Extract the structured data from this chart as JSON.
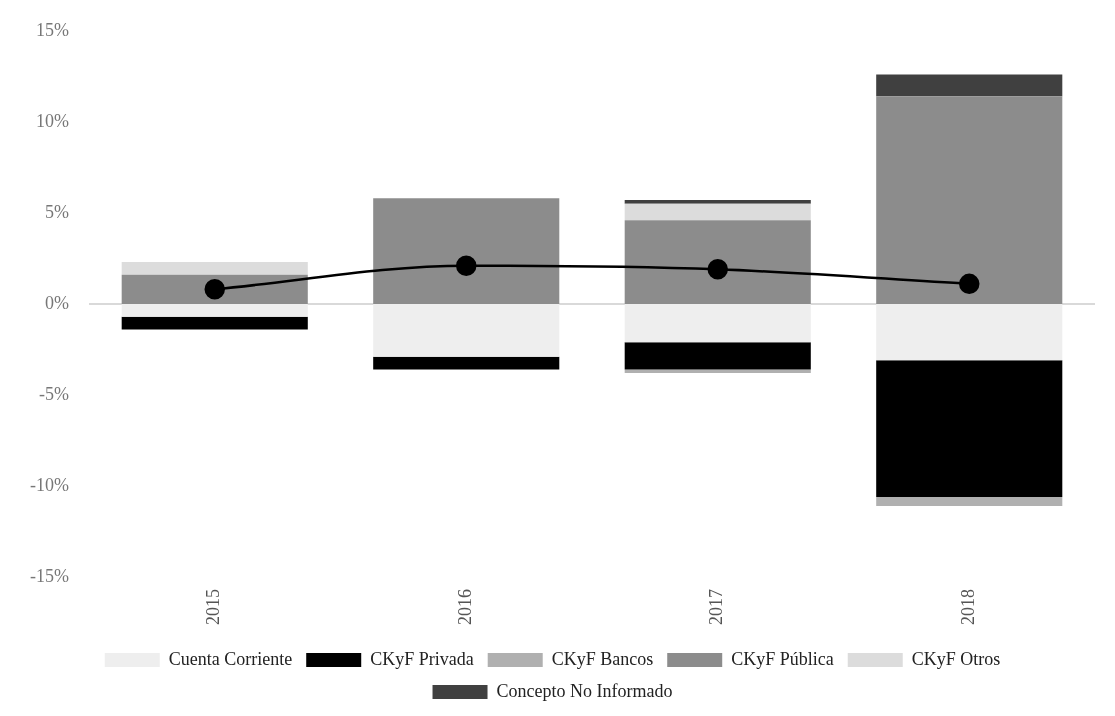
{
  "chart_data": {
    "type": "bar",
    "stacked": true,
    "categories": [
      "2015",
      "2016",
      "2017",
      "2018"
    ],
    "series": [
      {
        "name": "Cuenta Corriente",
        "color": "#eeeeee",
        "values": [
          -0.7,
          -2.9,
          -2.1,
          -3.1
        ]
      },
      {
        "name": "CKyF Privada",
        "color": "#000000",
        "values": [
          -0.7,
          -0.7,
          -1.5,
          -7.5
        ]
      },
      {
        "name": "CKyF Bancos",
        "color": "#b0b0b0",
        "values": [
          null,
          null,
          -0.2,
          -0.5
        ]
      },
      {
        "name": "CKyF Pública",
        "color": "#8c8c8c",
        "values": [
          1.6,
          5.8,
          4.6,
          11.4
        ]
      },
      {
        "name": "CKyF Otros",
        "color": "#dcdcdc",
        "values": [
          0.7,
          null,
          0.9,
          null
        ]
      },
      {
        "name": "Concepto No Informado",
        "color": "#404040",
        "values": [
          null,
          null,
          0.2,
          1.2
        ]
      },
      {
        "type": "line",
        "color": "#000000",
        "values": [
          0.8,
          2.1,
          1.9,
          1.1
        ]
      }
    ],
    "ylim": [
      -15,
      15
    ],
    "yticks": [
      {
        "value": -15,
        "label": "-15%"
      },
      {
        "value": -10,
        "label": "-10%"
      },
      {
        "value": -5,
        "label": "-5%"
      },
      {
        "value": 0,
        "label": "0%"
      },
      {
        "value": 5,
        "label": "5%"
      },
      {
        "value": 10,
        "label": "10%"
      },
      {
        "value": 15,
        "label": "15%"
      }
    ],
    "ref_lines": [
      {
        "axis": "y",
        "value": 0,
        "color": "#d9d9d9"
      }
    ],
    "grid": false,
    "legend": "bottom",
    "marker": "circle"
  }
}
